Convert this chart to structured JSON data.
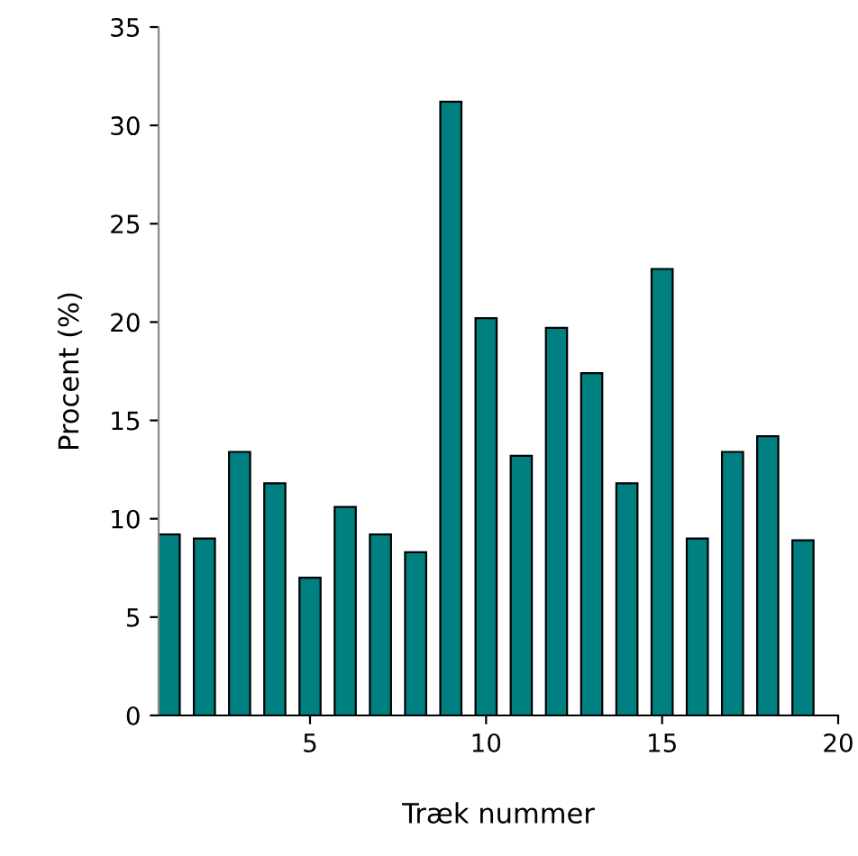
{
  "chart_data": {
    "type": "bar",
    "xlabel": "Træk nummer",
    "ylabel": "Procent (%)",
    "x": [
      1,
      2,
      3,
      4,
      5,
      6,
      7,
      8,
      9,
      10,
      11,
      12,
      13,
      14,
      15,
      16,
      17,
      18,
      19
    ],
    "values": [
      9.2,
      9.0,
      13.4,
      11.8,
      7.0,
      10.6,
      9.2,
      8.3,
      31.2,
      20.2,
      13.2,
      19.7,
      17.4,
      11.8,
      22.7,
      9.0,
      13.4,
      14.2,
      8.9
    ],
    "color": "#008080",
    "xlim": [
      0.7,
      20
    ],
    "xticks": [
      5,
      10,
      15,
      20
    ],
    "ylim": [
      0,
      35
    ],
    "yticks": [
      0,
      5,
      10,
      15,
      20,
      25,
      30,
      35
    ],
    "grid": false,
    "legend": false
  }
}
